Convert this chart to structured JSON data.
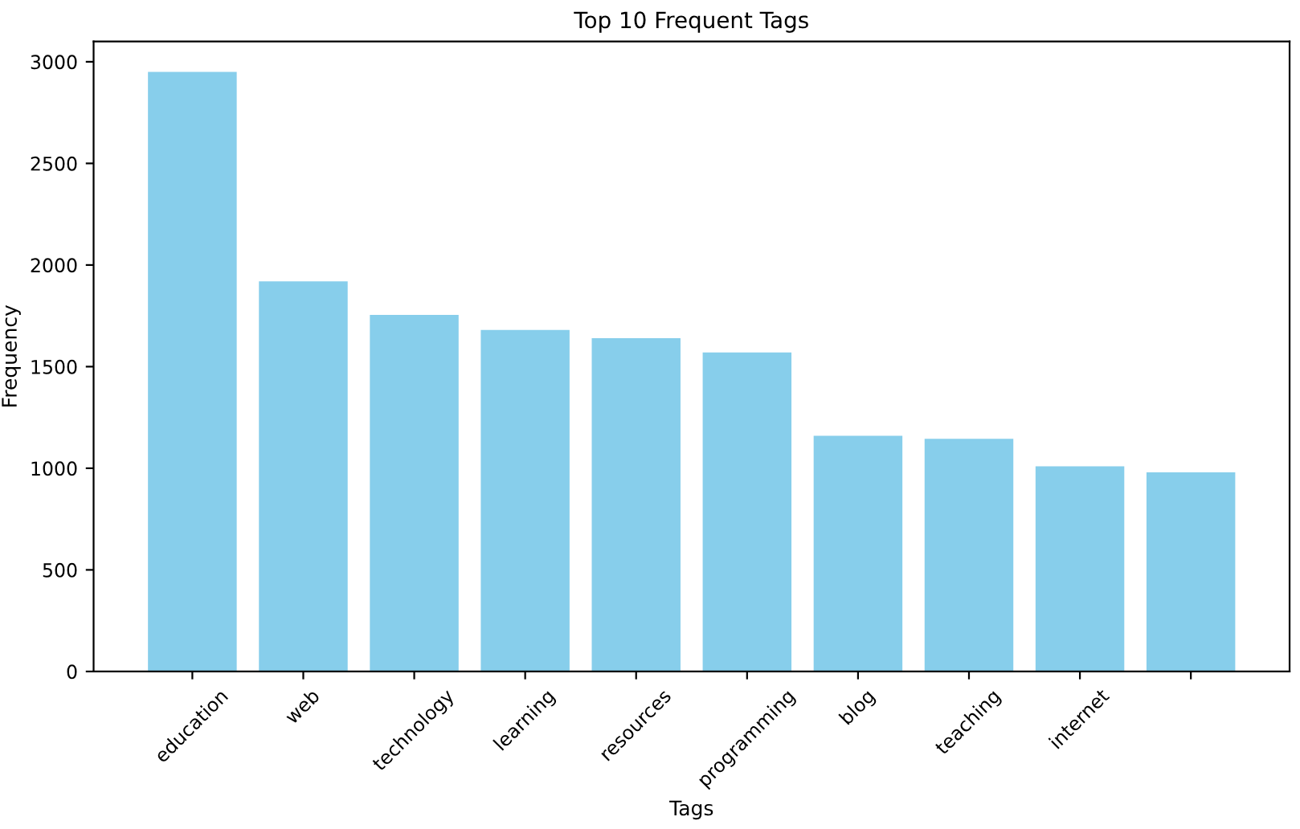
{
  "chart_data": {
    "type": "bar",
    "title": "Top 10 Frequent Tags",
    "xlabel": "Tags",
    "ylabel": "Frequency",
    "categories": [
      "education",
      "web",
      "technology",
      "learning",
      "resources",
      "programming",
      "blog",
      "teaching",
      "internet",
      null
    ],
    "values": [
      2950,
      1920,
      1755,
      1680,
      1640,
      1570,
      1160,
      1145,
      1010,
      980
    ],
    "color": "#87ceeb",
    "ylim": [
      0,
      3100
    ],
    "yticks": [
      0,
      500,
      1000,
      1500,
      2000,
      2500,
      3000
    ],
    "grid": false,
    "legend": false
  }
}
